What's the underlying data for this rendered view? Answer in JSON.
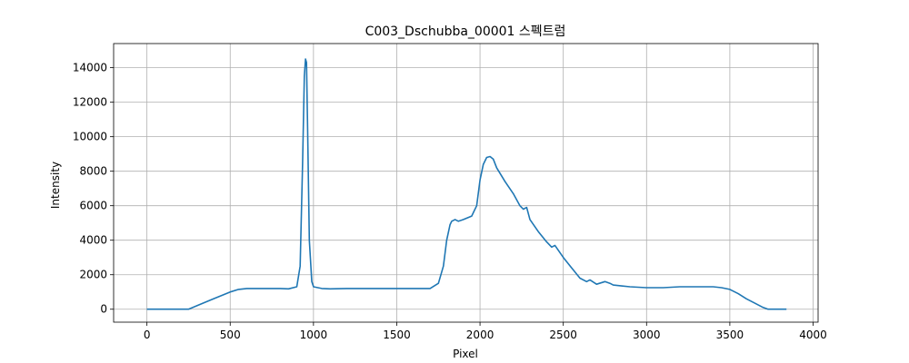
{
  "chart_data": {
    "type": "line",
    "title": "C003_Dschubba_00001 스펙트럼",
    "xlabel": "Pixel",
    "ylabel": "Intensity",
    "xlim": [
      -200,
      4030
    ],
    "ylim": [
      -750,
      15400
    ],
    "xticks": [
      0,
      500,
      1000,
      1500,
      2000,
      2500,
      3000,
      3500,
      4000
    ],
    "xtick_labels": [
      "0",
      "500",
      "1000",
      "1500",
      "2000",
      "2500",
      "3000",
      "3500",
      "4000"
    ],
    "yticks": [
      0,
      2000,
      4000,
      6000,
      8000,
      10000,
      12000,
      14000
    ],
    "ytick_labels": [
      "0",
      "2000",
      "4000",
      "6000",
      "8000",
      "10000",
      "12000",
      "14000"
    ],
    "grid": true,
    "series": [
      {
        "color": "#1f77b4",
        "x": [
          0,
          100,
          200,
          250,
          300,
          400,
          500,
          550,
          600,
          700,
          800,
          850,
          900,
          920,
          935,
          945,
          952,
          958,
          965,
          975,
          990,
          1000,
          1050,
          1100,
          1200,
          1300,
          1400,
          1500,
          1600,
          1700,
          1750,
          1780,
          1800,
          1820,
          1830,
          1850,
          1870,
          1900,
          1950,
          1980,
          2000,
          2020,
          2040,
          2060,
          2080,
          2100,
          2150,
          2200,
          2240,
          2260,
          2280,
          2300,
          2350,
          2400,
          2430,
          2450,
          2500,
          2550,
          2600,
          2640,
          2660,
          2700,
          2750,
          2780,
          2800,
          2850,
          2900,
          3000,
          3100,
          3200,
          3300,
          3400,
          3450,
          3500,
          3550,
          3600,
          3650,
          3700,
          3730,
          3750,
          3800,
          3840
        ],
        "y": [
          0,
          0,
          0,
          0,
          200,
          600,
          1000,
          1150,
          1200,
          1200,
          1200,
          1180,
          1300,
          2500,
          8500,
          13500,
          14500,
          14300,
          10500,
          4000,
          1600,
          1300,
          1200,
          1180,
          1200,
          1200,
          1200,
          1200,
          1200,
          1200,
          1500,
          2500,
          4000,
          4900,
          5100,
          5200,
          5100,
          5200,
          5400,
          6000,
          7500,
          8400,
          8800,
          8850,
          8700,
          8200,
          7400,
          6700,
          6000,
          5800,
          5900,
          5200,
          4500,
          3900,
          3600,
          3700,
          3000,
          2400,
          1800,
          1600,
          1700,
          1450,
          1600,
          1500,
          1400,
          1350,
          1300,
          1250,
          1250,
          1300,
          1300,
          1300,
          1250,
          1150,
          900,
          600,
          350,
          100,
          0,
          0,
          0,
          0
        ]
      }
    ]
  }
}
